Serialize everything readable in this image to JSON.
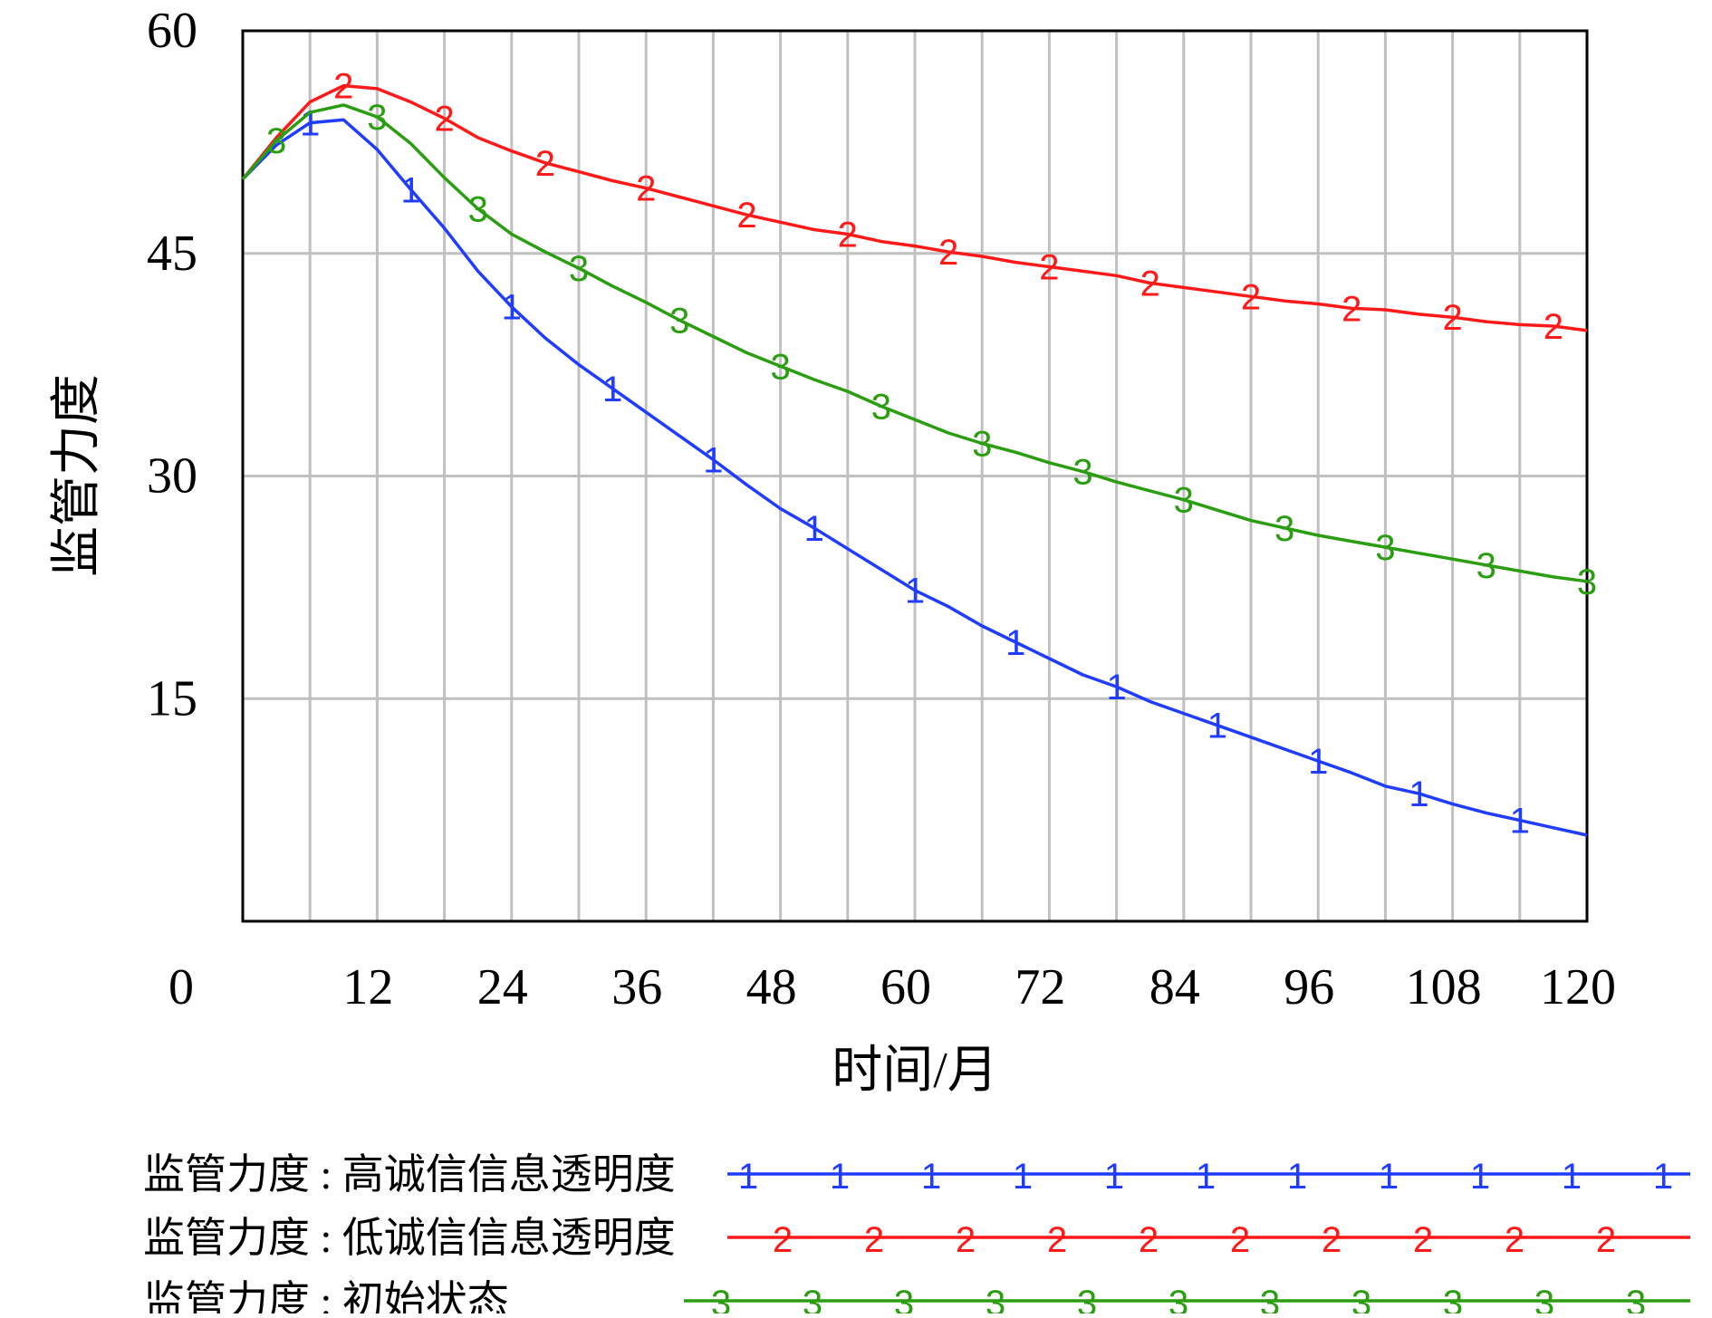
{
  "chart_data": {
    "type": "line",
    "xlabel": "时间/月",
    "ylabel": "监管力度",
    "xlim": [
      0,
      120
    ],
    "ylim": [
      0,
      60
    ],
    "xticks": [
      0,
      12,
      24,
      36,
      48,
      60,
      72,
      84,
      96,
      108,
      120
    ],
    "yticks": [
      15,
      30,
      45,
      60
    ],
    "x_tick_labels": [
      "0",
      "12",
      "24",
      "36",
      "48",
      "60",
      "72",
      "84",
      "96",
      "108",
      "120"
    ],
    "y_tick_labels": [
      "15",
      "30",
      "45",
      "60"
    ],
    "grid": true,
    "legend_position": "bottom",
    "series": [
      {
        "name": "监管力度 : 高诚信信息透明度",
        "marker": "1",
        "color": "#1f3cff",
        "x": [
          0,
          3,
          6,
          9,
          12,
          15,
          18,
          21,
          24,
          27,
          30,
          33,
          36,
          39,
          42,
          45,
          48,
          51,
          54,
          57,
          60,
          63,
          66,
          69,
          72,
          75,
          78,
          81,
          84,
          87,
          90,
          93,
          96,
          99,
          102,
          105,
          108,
          111,
          114,
          117,
          120
        ],
        "values": [
          50.0,
          52.3,
          53.8,
          54.0,
          52.0,
          49.3,
          46.7,
          43.8,
          41.4,
          39.3,
          37.5,
          35.9,
          34.3,
          32.7,
          31.1,
          29.4,
          27.8,
          26.5,
          25.1,
          23.7,
          22.3,
          21.2,
          19.9,
          18.8,
          17.7,
          16.6,
          15.8,
          14.8,
          14.0,
          13.2,
          12.4,
          11.6,
          10.8,
          10.0,
          9.1,
          8.6,
          7.9,
          7.3,
          6.8,
          6.3,
          5.8
        ]
      },
      {
        "name": "监管力度 : 低诚信信息透明度",
        "marker": "2",
        "color": "#ff1a1a",
        "x": [
          0,
          3,
          6,
          9,
          12,
          15,
          18,
          21,
          24,
          27,
          30,
          33,
          36,
          39,
          42,
          45,
          48,
          51,
          54,
          57,
          60,
          63,
          66,
          69,
          72,
          75,
          78,
          81,
          84,
          87,
          90,
          93,
          96,
          99,
          102,
          105,
          108,
          111,
          114,
          117,
          120
        ],
        "values": [
          50.0,
          52.8,
          55.2,
          56.3,
          56.1,
          55.2,
          54.1,
          52.8,
          51.9,
          51.1,
          50.5,
          49.9,
          49.4,
          48.8,
          48.2,
          47.6,
          47.1,
          46.6,
          46.3,
          45.8,
          45.5,
          45.1,
          44.8,
          44.4,
          44.1,
          43.8,
          43.5,
          43.0,
          42.7,
          42.4,
          42.1,
          41.8,
          41.6,
          41.3,
          41.2,
          40.9,
          40.7,
          40.4,
          40.2,
          40.1,
          39.8
        ]
      },
      {
        "name": "监管力度 : 初始状态",
        "marker": "3",
        "color": "#2a9d11",
        "x": [
          0,
          3,
          6,
          9,
          12,
          15,
          18,
          21,
          24,
          27,
          30,
          33,
          36,
          39,
          42,
          45,
          48,
          51,
          54,
          57,
          60,
          63,
          66,
          69,
          72,
          75,
          78,
          81,
          84,
          87,
          90,
          93,
          96,
          99,
          102,
          105,
          108,
          111,
          114,
          117,
          120
        ],
        "values": [
          50.0,
          52.6,
          54.5,
          55.0,
          54.2,
          52.4,
          50.1,
          48.0,
          46.3,
          45.1,
          44.0,
          42.8,
          41.7,
          40.5,
          39.4,
          38.3,
          37.4,
          36.5,
          35.7,
          34.7,
          33.8,
          32.9,
          32.2,
          31.6,
          30.9,
          30.3,
          29.6,
          29.0,
          28.4,
          27.7,
          27.0,
          26.5,
          26.0,
          25.6,
          25.2,
          24.8,
          24.4,
          24.0,
          23.6,
          23.2,
          22.9
        ]
      }
    ]
  }
}
